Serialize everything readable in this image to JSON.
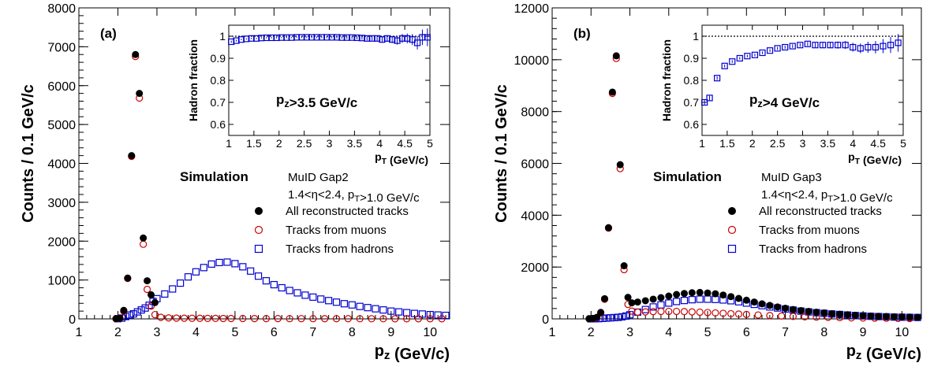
{
  "chart_data": [
    {
      "type": "scatter",
      "panel_label": "(a)",
      "xlabel": "p_z (GeV/c)",
      "ylabel": "Counts / 0.1 GeV/c",
      "xlim": [
        1,
        10.5
      ],
      "ylim": [
        0,
        8000
      ],
      "xticks": [
        1,
        2,
        3,
        4,
        5,
        6,
        7,
        8,
        9,
        10
      ],
      "yticks": [
        0,
        1000,
        2000,
        3000,
        4000,
        5000,
        6000,
        7000,
        8000
      ],
      "annotations": {
        "simulation": "Simulation",
        "detector": "MuID Gap2",
        "cuts": "1.4<η<2.4, p_T>1.0 GeV/c"
      },
      "legend_position": "bottom-right",
      "series": [
        {
          "name": "All reconstructed tracks",
          "marker": "filled-circle",
          "color": "#000000",
          "x": [
            1.95,
            2.05,
            2.15,
            2.25,
            2.35,
            2.45,
            2.55,
            2.65,
            2.75,
            2.85,
            2.95
          ],
          "y": [
            5,
            20,
            220,
            1050,
            4200,
            6800,
            5800,
            2080,
            980,
            620,
            420
          ]
        },
        {
          "name": "Tracks from muons",
          "marker": "open-circle",
          "color": "#cc0000",
          "x": [
            1.95,
            2.05,
            2.15,
            2.25,
            2.35,
            2.45,
            2.55,
            2.65,
            2.75,
            2.85,
            2.95,
            3.1,
            3.3,
            3.5,
            3.7,
            3.9,
            4.1,
            4.3,
            4.5,
            4.7,
            4.9,
            5.2,
            5.5,
            5.8,
            6.1,
            6.4,
            6.7,
            7.0,
            7.3,
            7.6,
            7.9,
            8.2,
            8.5,
            8.8,
            9.1,
            9.4,
            9.7,
            10.0,
            10.3
          ],
          "y": [
            5,
            15,
            200,
            1040,
            4180,
            6750,
            5680,
            1920,
            760,
            330,
            110,
            40,
            25,
            20,
            18,
            15,
            15,
            12,
            12,
            10,
            10,
            10,
            8,
            8,
            8,
            6,
            6,
            6,
            5,
            5,
            5,
            4,
            4,
            4,
            3,
            3,
            3,
            3,
            3
          ]
        },
        {
          "name": "Tracks from hadrons",
          "marker": "open-square",
          "color": "#0000cc",
          "x": [
            2.0,
            2.1,
            2.2,
            2.3,
            2.4,
            2.5,
            2.6,
            2.7,
            2.8,
            2.9,
            3.0,
            3.2,
            3.4,
            3.6,
            3.8,
            4.0,
            4.2,
            4.4,
            4.6,
            4.8,
            5.0,
            5.2,
            5.4,
            5.6,
            5.8,
            6.0,
            6.2,
            6.4,
            6.6,
            6.8,
            7.0,
            7.2,
            7.4,
            7.6,
            7.8,
            8.0,
            8.2,
            8.4,
            8.6,
            8.8,
            9.0,
            9.2,
            9.4,
            9.6,
            9.8,
            10.0,
            10.2,
            10.4
          ],
          "y": [
            5,
            20,
            60,
            100,
            130,
            180,
            230,
            280,
            350,
            450,
            520,
            640,
            770,
            920,
            1080,
            1210,
            1320,
            1410,
            1450,
            1460,
            1420,
            1340,
            1230,
            1100,
            980,
            880,
            800,
            730,
            670,
            610,
            560,
            510,
            470,
            430,
            390,
            360,
            320,
            290,
            260,
            230,
            200,
            180,
            160,
            140,
            125,
            110,
            100,
            90
          ]
        }
      ],
      "inset": {
        "type": "scatter",
        "xlabel": "p_T (GeV/c)",
        "ylabel": "Hadron fraction",
        "annotation": "p_z>3.5 GeV/c",
        "xlim": [
          1,
          5
        ],
        "ylim": [
          0.55,
          1.05
        ],
        "xticks": [
          1,
          1.5,
          2,
          2.5,
          3,
          3.5,
          4,
          4.5,
          5
        ],
        "yticks": [
          0.6,
          0.7,
          0.8,
          0.9,
          1.0
        ],
        "reference_line": 1.0,
        "series": [
          {
            "name": "Hadron fraction",
            "marker": "open-square",
            "color": "#0000cc",
            "x": [
              1.05,
              1.15,
              1.25,
              1.35,
              1.45,
              1.55,
              1.65,
              1.75,
              1.85,
              1.95,
              2.05,
              2.15,
              2.25,
              2.35,
              2.45,
              2.55,
              2.65,
              2.75,
              2.85,
              2.95,
              3.05,
              3.15,
              3.25,
              3.35,
              3.45,
              3.55,
              3.65,
              3.75,
              3.85,
              3.95,
              4.05,
              4.15,
              4.25,
              4.35,
              4.45,
              4.55,
              4.65,
              4.75,
              4.85,
              4.95
            ],
            "y": [
              0.975,
              0.98,
              0.985,
              0.988,
              0.99,
              0.99,
              0.992,
              0.993,
              0.993,
              0.993,
              0.994,
              0.994,
              0.994,
              0.995,
              0.995,
              0.995,
              0.995,
              0.995,
              0.995,
              0.995,
              0.995,
              0.995,
              0.994,
              0.994,
              0.994,
              0.993,
              0.992,
              0.99,
              0.99,
              0.99,
              0.985,
              0.99,
              0.985,
              0.98,
              0.99,
              0.99,
              0.985,
              0.97,
              0.995,
              0.995
            ],
            "err": [
              0.005,
              0.004,
              0.003,
              0.003,
              0.003,
              0.003,
              0.003,
              0.003,
              0.003,
              0.003,
              0.003,
              0.003,
              0.003,
              0.003,
              0.003,
              0.004,
              0.004,
              0.004,
              0.004,
              0.004,
              0.005,
              0.005,
              0.005,
              0.006,
              0.006,
              0.007,
              0.008,
              0.009,
              0.01,
              0.011,
              0.012,
              0.014,
              0.016,
              0.018,
              0.02,
              0.022,
              0.025,
              0.03,
              0.035,
              0.04
            ]
          }
        ]
      }
    },
    {
      "type": "scatter",
      "panel_label": "(b)",
      "xlabel": "p_z (GeV/c)",
      "ylabel": "Counts / 0.1 GeV/c",
      "xlim": [
        1,
        10.5
      ],
      "ylim": [
        0,
        12000
      ],
      "xticks": [
        1,
        2,
        3,
        4,
        5,
        6,
        7,
        8,
        9,
        10
      ],
      "yticks": [
        0,
        2000,
        4000,
        6000,
        8000,
        10000,
        12000
      ],
      "annotations": {
        "simulation": "Simulation",
        "detector": "MuID Gap3",
        "cuts": "1.4<η<2.4, p_T>1.0 GeV/c"
      },
      "legend_position": "bottom-right",
      "series": [
        {
          "name": "All reconstructed tracks",
          "marker": "filled-circle",
          "color": "#000000",
          "x": [
            1.95,
            2.05,
            2.15,
            2.25,
            2.35,
            2.45,
            2.55,
            2.65,
            2.75,
            2.85,
            2.95,
            3.05,
            3.2,
            3.4,
            3.6,
            3.8,
            4.0,
            4.2,
            4.4,
            4.6,
            4.8,
            5.0,
            5.2,
            5.4,
            5.6,
            5.8,
            6.0,
            6.2,
            6.4,
            6.6,
            6.8,
            7.0,
            7.2,
            7.4,
            7.6,
            7.8,
            8.0,
            8.2,
            8.4,
            8.6,
            8.8,
            9.0,
            9.2,
            9.4,
            9.6,
            9.8,
            10.0,
            10.2,
            10.4
          ],
          "y": [
            5,
            20,
            60,
            250,
            780,
            3520,
            8750,
            10150,
            5950,
            2050,
            830,
            620,
            650,
            700,
            760,
            820,
            880,
            940,
            980,
            1010,
            1020,
            1000,
            970,
            920,
            860,
            790,
            720,
            650,
            580,
            520,
            460,
            410,
            360,
            320,
            290,
            260,
            230,
            200,
            180,
            160,
            140,
            125,
            110,
            100,
            90,
            80,
            75,
            70,
            60
          ]
        },
        {
          "name": "Tracks from muons",
          "marker": "open-circle",
          "color": "#cc0000",
          "x": [
            1.95,
            2.05,
            2.15,
            2.25,
            2.35,
            2.45,
            2.55,
            2.65,
            2.75,
            2.85,
            2.95,
            3.05,
            3.2,
            3.4,
            3.6,
            3.8,
            4.0,
            4.2,
            4.4,
            4.6,
            4.8,
            5.0,
            5.2,
            5.4,
            5.6,
            5.8,
            6.0,
            6.3,
            6.6,
            6.9,
            7.2,
            7.5,
            7.8,
            8.1,
            8.4,
            8.7,
            9.0,
            9.3,
            9.6,
            9.9,
            10.2
          ],
          "y": [
            5,
            15,
            50,
            230,
            760,
            3500,
            8700,
            10050,
            5800,
            1900,
            560,
            300,
            260,
            270,
            280,
            290,
            290,
            290,
            280,
            270,
            260,
            245,
            230,
            215,
            200,
            185,
            170,
            150,
            130,
            110,
            95,
            80,
            70,
            60,
            50,
            40,
            35,
            30,
            25,
            20,
            15
          ]
        },
        {
          "name": "Tracks from hadrons",
          "marker": "open-square",
          "color": "#0000cc",
          "x": [
            2.0,
            2.1,
            2.2,
            2.3,
            2.4,
            2.5,
            2.6,
            2.7,
            2.8,
            2.9,
            3.0,
            3.2,
            3.4,
            3.6,
            3.8,
            4.0,
            4.2,
            4.4,
            4.6,
            4.8,
            5.0,
            5.2,
            5.4,
            5.6,
            5.8,
            6.0,
            6.2,
            6.4,
            6.6,
            6.8,
            7.0,
            7.2,
            7.4,
            7.6,
            7.8,
            8.0,
            8.2,
            8.4,
            8.6,
            8.8,
            9.0,
            9.2,
            9.4,
            9.6,
            9.8,
            10.0,
            10.2,
            10.4
          ],
          "y": [
            2,
            5,
            10,
            20,
            30,
            40,
            50,
            60,
            80,
            110,
            160,
            260,
            360,
            460,
            540,
            610,
            670,
            710,
            740,
            760,
            760,
            750,
            730,
            700,
            660,
            610,
            560,
            510,
            460,
            420,
            380,
            340,
            300,
            270,
            240,
            215,
            190,
            170,
            150,
            130,
            115,
            100,
            90,
            80,
            70,
            65,
            60,
            55
          ]
        }
      ],
      "inset": {
        "type": "scatter",
        "xlabel": "p_T (GeV/c)",
        "ylabel": "Hadron fraction",
        "annotation": "p_z>4 GeV/c",
        "xlim": [
          1,
          5
        ],
        "ylim": [
          0.55,
          1.05
        ],
        "xticks": [
          1,
          1.5,
          2,
          2.5,
          3,
          3.5,
          4,
          4.5,
          5
        ],
        "yticks": [
          0.6,
          0.7,
          0.8,
          0.9,
          1.0
        ],
        "reference_line": 1.0,
        "series": [
          {
            "name": "Hadron fraction",
            "marker": "open-square",
            "color": "#0000cc",
            "x": [
              1.05,
              1.15,
              1.3,
              1.45,
              1.6,
              1.75,
              1.9,
              2.05,
              2.2,
              2.35,
              2.5,
              2.65,
              2.8,
              2.95,
              3.1,
              3.25,
              3.4,
              3.55,
              3.7,
              3.85,
              4.0,
              4.15,
              4.3,
              4.45,
              4.6,
              4.75,
              4.9
            ],
            "y": [
              0.7,
              0.72,
              0.81,
              0.865,
              0.885,
              0.9,
              0.91,
              0.915,
              0.925,
              0.935,
              0.945,
              0.95,
              0.955,
              0.96,
              0.965,
              0.96,
              0.96,
              0.96,
              0.96,
              0.96,
              0.95,
              0.945,
              0.95,
              0.95,
              0.955,
              0.96,
              0.97
            ],
            "err": [
              0.01,
              0.01,
              0.008,
              0.007,
              0.006,
              0.006,
              0.006,
              0.006,
              0.006,
              0.006,
              0.007,
              0.007,
              0.008,
              0.008,
              0.009,
              0.01,
              0.012,
              0.014,
              0.016,
              0.018,
              0.02,
              0.022,
              0.025,
              0.028,
              0.032,
              0.036,
              0.04
            ]
          }
        ]
      }
    }
  ]
}
